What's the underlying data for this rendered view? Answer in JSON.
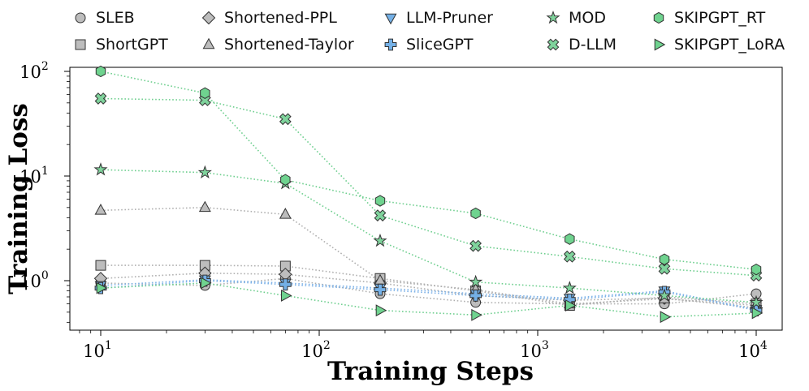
{
  "chart_data": {
    "type": "line",
    "title": "",
    "xlabel": "Training Steps",
    "ylabel": "Training Loss",
    "x_scale": "log",
    "y_scale": "log",
    "xlim": [
      7,
      14000
    ],
    "ylim": [
      0.4,
      110
    ],
    "x_ticks": [
      {
        "value": 10,
        "base": "10",
        "exp": "1"
      },
      {
        "value": 100,
        "base": "10",
        "exp": "2"
      },
      {
        "value": 1000,
        "base": "10",
        "exp": "3"
      },
      {
        "value": 10000,
        "base": "10",
        "exp": "4"
      }
    ],
    "y_ticks": [
      {
        "value": 1,
        "base": "10",
        "exp": "0"
      },
      {
        "value": 10,
        "base": "10",
        "exp": "1"
      },
      {
        "value": 100,
        "base": "10",
        "exp": "2"
      }
    ],
    "x": [
      10,
      30,
      70,
      190,
      520,
      1400,
      3800,
      10000
    ],
    "series": [
      {
        "name": "SLEB",
        "marker": "circle",
        "color": "#bdbdbd",
        "line_color": "#b0b0b0",
        "values": [
          0.95,
          0.9,
          1.05,
          0.75,
          0.62,
          0.6,
          0.6,
          0.75
        ]
      },
      {
        "name": "ShortGPT",
        "marker": "square",
        "color": "#bdbdbd",
        "line_color": "#b0b0b0",
        "values": [
          1.4,
          1.4,
          1.38,
          1.05,
          0.8,
          0.58,
          0.7,
          0.6
        ]
      },
      {
        "name": "Shortened-PPL",
        "marker": "diamond",
        "color": "#bdbdbd",
        "line_color": "#b0b0b0",
        "values": [
          1.05,
          1.18,
          1.15,
          0.95,
          0.72,
          0.65,
          0.68,
          0.55
        ]
      },
      {
        "name": "Shortened-Taylor",
        "marker": "triangle-up",
        "color": "#bdbdbd",
        "line_color": "#b0b0b0",
        "values": [
          4.7,
          5.0,
          4.3,
          1.0,
          0.82,
          0.6,
          0.67,
          0.58
        ]
      },
      {
        "name": "LLM-Pruner",
        "marker": "triangle-down",
        "color": "#74b0e6",
        "line_color": "#7fb3e8",
        "values": [
          0.9,
          1.02,
          0.95,
          0.85,
          0.75,
          0.68,
          0.8,
          0.53
        ]
      },
      {
        "name": "SliceGPT",
        "marker": "plus",
        "color": "#74b0e6",
        "line_color": "#7fb3e8",
        "values": [
          0.85,
          1.0,
          0.92,
          0.82,
          0.72,
          0.66,
          0.78,
          0.52
        ]
      },
      {
        "name": "MOD",
        "marker": "star",
        "color": "#7fd39c",
        "line_color": "#6fcf8f",
        "values": [
          11.5,
          10.8,
          8.5,
          2.4,
          0.97,
          0.85,
          0.72,
          0.62
        ]
      },
      {
        "name": "D-LLM",
        "marker": "x-filled",
        "color": "#7fd39c",
        "line_color": "#6fcf8f",
        "values": [
          55,
          53,
          35,
          4.2,
          2.15,
          1.7,
          1.3,
          1.12
        ]
      },
      {
        "name": "SKIPGPT_RT",
        "marker": "hexagon",
        "color": "#6fd38f",
        "line_color": "#6fcf8f",
        "values": [
          100,
          62,
          9.2,
          5.8,
          4.4,
          2.5,
          1.6,
          1.28
        ]
      },
      {
        "name": "SKIPGPT_LoRA",
        "marker": "triangle-right",
        "color": "#6fd38f",
        "line_color": "#6fcf8f",
        "values": [
          0.85,
          0.95,
          0.72,
          0.52,
          0.47,
          0.58,
          0.45,
          0.49
        ]
      }
    ],
    "legend_position": "top",
    "grid": false
  }
}
